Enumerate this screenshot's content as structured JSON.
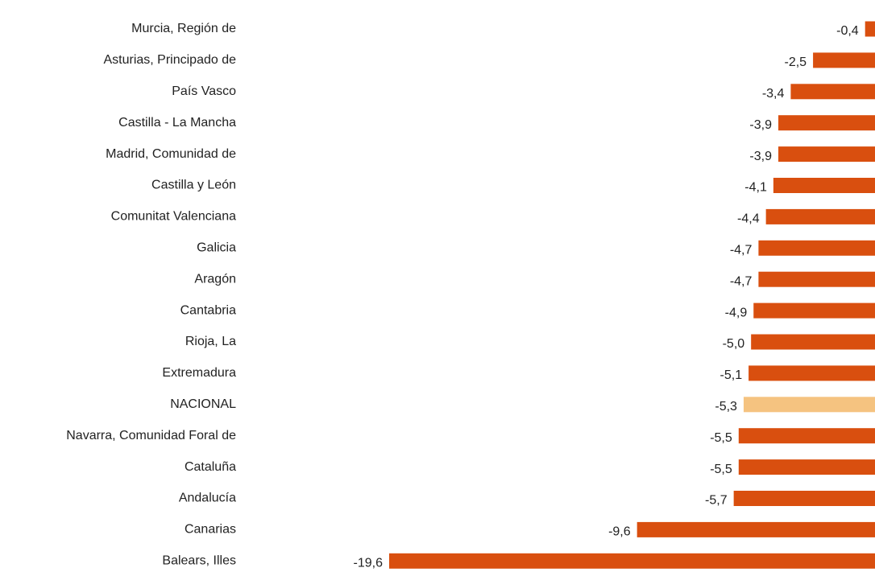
{
  "chart_data": {
    "type": "bar",
    "orientation": "horizontal",
    "categories": [
      "Murcia, Región de",
      "Asturias, Principado de",
      "País Vasco",
      "Castilla - La Mancha",
      "Madrid, Comunidad de",
      "Castilla y León",
      "Comunitat Valenciana",
      "Galicia",
      "Aragón",
      "Cantabria",
      "Rioja, La",
      "Extremadura",
      "NACIONAL",
      "Navarra, Comunidad Foral de",
      "Cataluña",
      "Andalucía",
      "Canarias",
      "Balears, Illes"
    ],
    "values": [
      -0.4,
      -2.5,
      -3.4,
      -3.9,
      -3.9,
      -4.1,
      -4.4,
      -4.7,
      -4.7,
      -4.9,
      -5.0,
      -5.1,
      -5.3,
      -5.5,
      -5.5,
      -5.7,
      -9.6,
      -19.6
    ],
    "value_labels": [
      "-0,4",
      "-2,5",
      "-3,4",
      "-3,9",
      "-3,9",
      "-4,1",
      "-4,4",
      "-4,7",
      "-4,7",
      "-4,9",
      "-5,0",
      "-5,1",
      "-5,3",
      "-5,5",
      "-5,5",
      "-5,7",
      "-9,6",
      "-19,6"
    ],
    "colors": [
      "#d94f0f",
      "#d94f0f",
      "#d94f0f",
      "#d94f0f",
      "#d94f0f",
      "#d94f0f",
      "#d94f0f",
      "#d94f0f",
      "#d94f0f",
      "#d94f0f",
      "#d94f0f",
      "#d94f0f",
      "#f5c380",
      "#d94f0f",
      "#d94f0f",
      "#d94f0f",
      "#d94f0f",
      "#d94f0f"
    ]
  }
}
